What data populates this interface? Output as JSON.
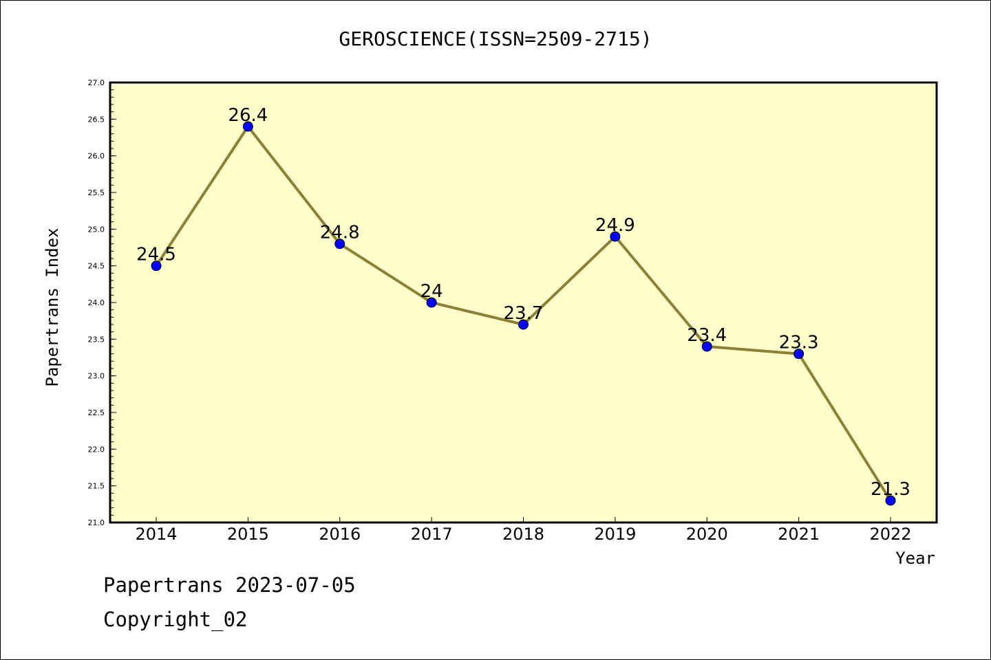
{
  "chart_data": {
    "type": "line",
    "title": "GEROSCIENCE(ISSN=2509-2715)",
    "xlabel": "Year",
    "ylabel": "Papertrans Index",
    "categories": [
      "2014",
      "2015",
      "2016",
      "2017",
      "2018",
      "2019",
      "2020",
      "2021",
      "2022"
    ],
    "series": [
      {
        "values": [
          24.5,
          26.4,
          24.8,
          24.0,
          23.7,
          24.9,
          23.4,
          23.3,
          21.3
        ],
        "labels": [
          "24.5",
          "26.4",
          "24.8",
          "24",
          "23.7",
          "24.9",
          "23.4",
          "23.3",
          "21.3"
        ]
      }
    ],
    "ylim": [
      21.0,
      27.0
    ],
    "yticks": [
      "21.0",
      "21.5",
      "22.0",
      "22.5",
      "23.0",
      "23.5",
      "24.0",
      "24.5",
      "25.0",
      "25.5",
      "26.0",
      "26.5",
      "27.0"
    ],
    "grid": false,
    "colors": {
      "plot_background": "#ffffcc",
      "line": "#8b8035",
      "marker": "#0000ff"
    }
  },
  "footer": {
    "line1": "Papertrans 2023-07-05",
    "line2": "Copyright_02"
  }
}
